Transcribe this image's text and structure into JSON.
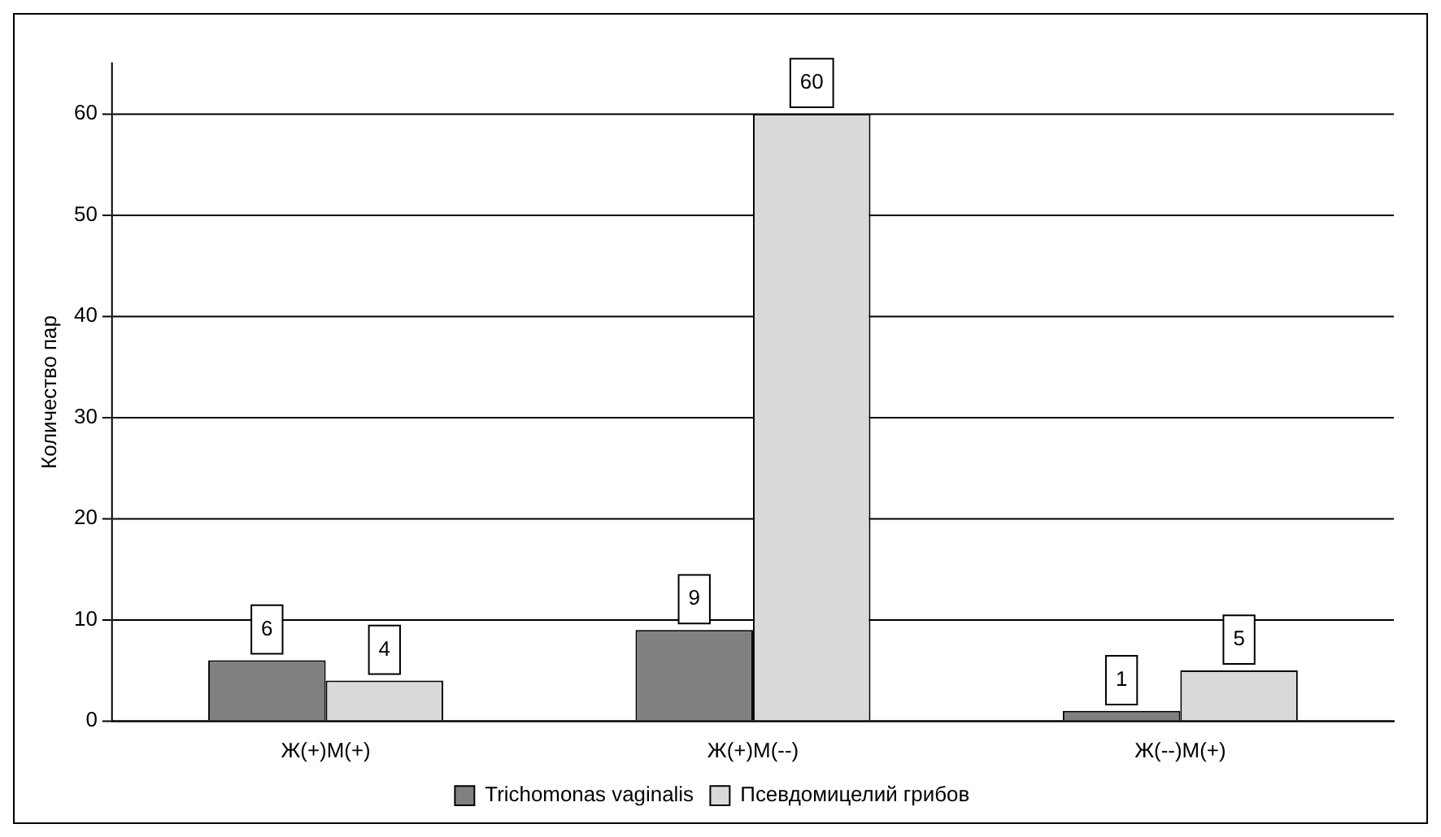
{
  "chart_data": {
    "type": "bar",
    "ylabel": "Количество пар",
    "categories": [
      "Ж(+)М(+)",
      "Ж(+)М(--)",
      "Ж(--)М(+)"
    ],
    "series": [
      {
        "name": "Trichomonas vaginalis",
        "color": "#808080",
        "values": [
          6,
          9,
          1
        ]
      },
      {
        "name": "Псевдомицелий грибов",
        "color": "#d9d9d9",
        "values": [
          4,
          60,
          5
        ]
      }
    ],
    "ylim": [
      0,
      65
    ],
    "yticks": [
      0,
      10,
      20,
      30,
      40,
      50,
      60
    ],
    "grid": "y",
    "legend": "bottom",
    "data_labels": true
  }
}
